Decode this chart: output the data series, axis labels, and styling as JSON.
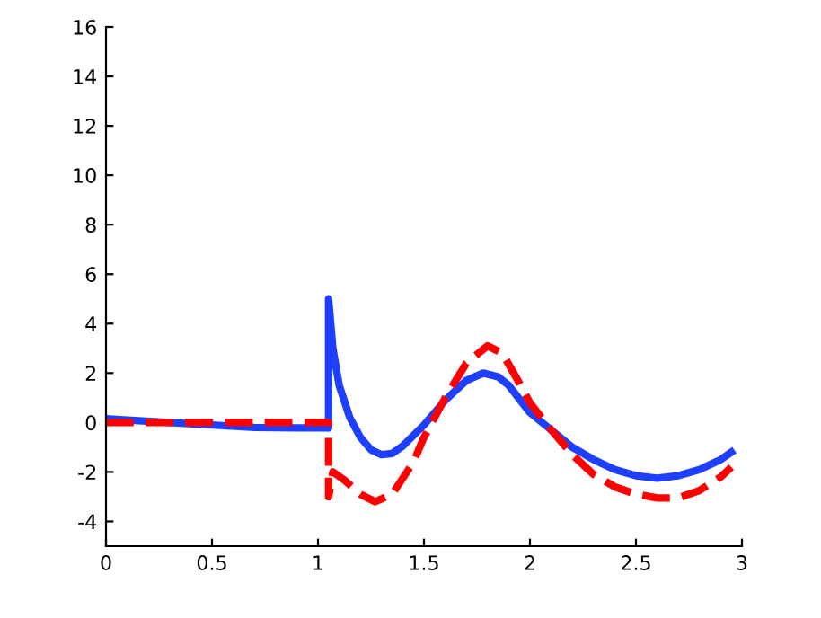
{
  "chart_data": {
    "type": "line",
    "xlim": [
      0,
      3
    ],
    "ylim": [
      -5,
      16
    ],
    "xticks": [
      0,
      0.5,
      1,
      1.5,
      2,
      2.5,
      3
    ],
    "yticks": [
      -4,
      -2,
      0,
      2,
      4,
      6,
      8,
      10,
      12,
      14,
      16
    ],
    "grid": false,
    "marker": "none",
    "series": [
      {
        "color": "#1f3fff",
        "line_style": "solid",
        "x": [
          0,
          0.1,
          0.3,
          0.5,
          0.7,
          0.9,
          1.05,
          1.05,
          1.07,
          1.1,
          1.15,
          1.2,
          1.25,
          1.3,
          1.35,
          1.4,
          1.5,
          1.6,
          1.7,
          1.78,
          1.85,
          1.9,
          2.0,
          2.1,
          2.2,
          2.3,
          2.4,
          2.5,
          2.6,
          2.7,
          2.8,
          2.9,
          2.95
        ],
        "values": [
          0.15,
          0.1,
          0,
          -0.1,
          -0.2,
          -0.22,
          -0.22,
          5,
          3,
          1.5,
          0.2,
          -0.6,
          -1.1,
          -1.3,
          -1.25,
          -0.95,
          -0.1,
          0.9,
          1.7,
          2.0,
          1.85,
          1.5,
          0.4,
          -0.3,
          -1.0,
          -1.5,
          -1.9,
          -2.15,
          -2.25,
          -2.15,
          -1.9,
          -1.5,
          -1.2
        ]
      },
      {
        "color": "#ff0000",
        "line_style": "dashed",
        "x": [
          0,
          0.5,
          1.05,
          1.05,
          1.07,
          1.12,
          1.2,
          1.27,
          1.35,
          1.45,
          1.5,
          1.6,
          1.7,
          1.8,
          1.87,
          1.95,
          2.0,
          2.1,
          2.2,
          2.3,
          2.4,
          2.5,
          2.6,
          2.7,
          2.8,
          2.9,
          2.95
        ],
        "values": [
          0,
          0,
          0,
          -3,
          -2,
          -2.3,
          -2.9,
          -3.2,
          -2.9,
          -1.6,
          -0.6,
          1.0,
          2.4,
          3.1,
          2.8,
          1.6,
          0.8,
          -0.3,
          -1.3,
          -2.1,
          -2.6,
          -2.9,
          -3.05,
          -3.05,
          -2.75,
          -2.2,
          -1.8
        ]
      }
    ]
  }
}
